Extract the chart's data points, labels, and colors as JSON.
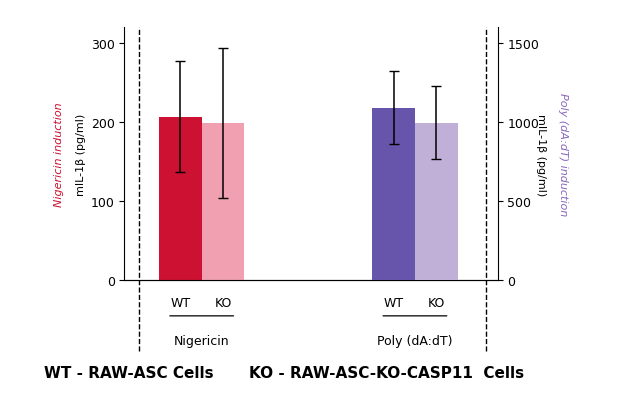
{
  "nigericin_wt_val": 207,
  "nigericin_wt_err": 70,
  "nigericin_ko_val": 199,
  "nigericin_ko_err": 95,
  "poly_wt_val": 1090,
  "poly_wt_err": 230,
  "poly_ko_val": 995,
  "poly_ko_err": 230,
  "color_nig_wt": "#cc1133",
  "color_nig_ko": "#f0a0b0",
  "color_poly_wt": "#6655aa",
  "color_poly_ko": "#c0b0d8",
  "left_ylim": [
    0,
    320
  ],
  "right_ylim": [
    0,
    1600
  ],
  "left_yticks": [
    0,
    100,
    200,
    300
  ],
  "right_yticks": [
    0,
    500,
    1000,
    1500
  ],
  "left_ylabel1": "Nigericin induction",
  "left_ylabel2": "mIL-1β (pg/ml)",
  "right_ylabel1": "Poly (dA:dT) induction",
  "right_ylabel2": "mIL-1β (pg/ml)",
  "left_ylabel_color": "#cc1133",
  "right_ylabel_color": "#8866bb",
  "group_labels": [
    "Nigericin",
    "Poly (dA:dT)"
  ],
  "bar_width": 0.32,
  "footer_left": "WT - RAW-ASC Cells",
  "footer_right": "KO - RAW-ASC-KO-CASP11  Cells"
}
